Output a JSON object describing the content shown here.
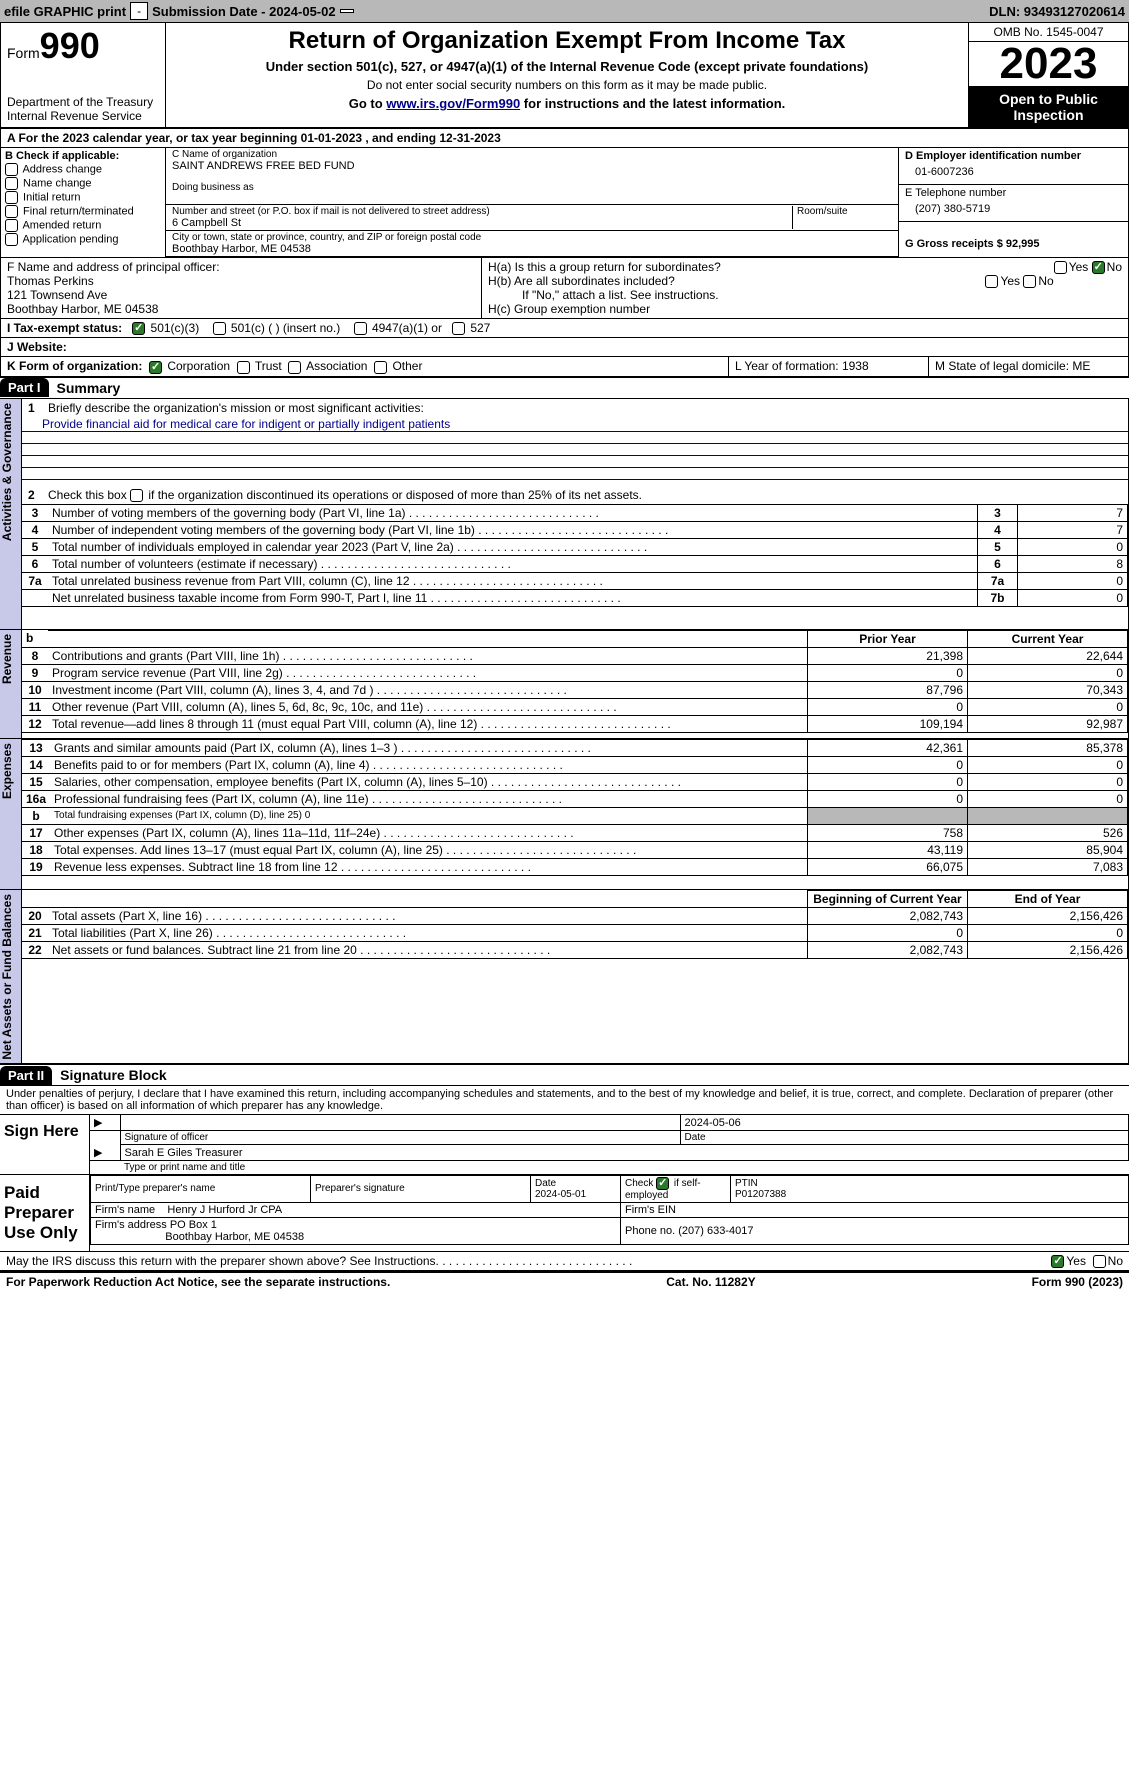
{
  "topbar": {
    "efile": "efile GRAPHIC print",
    "submission": "Submission Date - 2024-05-02",
    "dln": "DLN: 93493127020614"
  },
  "header": {
    "form_label": "Form",
    "form_no": "990",
    "dept": "Department of the Treasury\nInternal Revenue Service",
    "title": "Return of Organization Exempt From Income Tax",
    "sub": "Under section 501(c), 527, or 4947(a)(1) of the Internal Revenue Code (except private foundations)",
    "nossn": "Do not enter social security numbers on this form as it may be made public.",
    "goto": "Go to ",
    "link": "www.irs.gov/Form990",
    "goto2": " for instructions and the latest information.",
    "omb": "OMB No. 1545-0047",
    "year": "2023",
    "open": "Open to Public Inspection"
  },
  "lineA": "A For the 2023 calendar year, or tax year beginning 01-01-2023   , and ending 12-31-2023",
  "B": {
    "title": "B Check if applicable:",
    "items": [
      "Address change",
      "Name change",
      "Initial return",
      "Final return/terminated",
      "Amended return",
      "Application pending"
    ]
  },
  "C": {
    "name_lbl": "C Name of organization",
    "name": "SAINT ANDREWS FREE BED FUND",
    "dba_lbl": "Doing business as",
    "addr_lbl": "Number and street (or P.O. box if mail is not delivered to street address)",
    "addr": "6 Campbell St",
    "room_lbl": "Room/suite",
    "city_lbl": "City or town, state or province, country, and ZIP or foreign postal code",
    "city": "Boothbay Harbor, ME  04538"
  },
  "D": {
    "lbl": "D Employer identification number",
    "val": "01-6007236"
  },
  "E": {
    "lbl": "E Telephone number",
    "val": "(207) 380-5719"
  },
  "G": {
    "lbl": "G Gross receipts $ 92,995"
  },
  "F": {
    "lbl": "F  Name and address of principal officer:",
    "name": "Thomas Perkins",
    "addr1": "121 Townsend Ave",
    "addr2": "Boothbay Harbor, ME  04538"
  },
  "H": {
    "a": "H(a)  Is this a group return for subordinates?",
    "b": "H(b)  Are all subordinates included?",
    "bnote": "If \"No,\" attach a list. See instructions.",
    "c": "H(c)  Group exemption number",
    "yes": "Yes",
    "no": "No"
  },
  "I": {
    "lbl": "I  Tax-exempt status:",
    "o1": "501(c)(3)",
    "o2": "501(c) (  ) (insert no.)",
    "o3": "4947(a)(1) or",
    "o4": "527"
  },
  "J": {
    "lbl": "J  Website:"
  },
  "K": {
    "lbl": "K Form of organization:",
    "o1": "Corporation",
    "o2": "Trust",
    "o3": "Association",
    "o4": "Other"
  },
  "L": "L Year of formation: 1938",
  "M": "M State of legal domicile: ME",
  "part1": {
    "hdr": "Part I",
    "title": "Summary",
    "l1": "Briefly describe the organization's mission or most significant activities:",
    "mission": "Provide financial aid for medical care for indigent or partially indigent patients",
    "l2": "Check this box       if the organization discontinued its operations or disposed of more than 25% of its net assets.",
    "rows_gov": [
      {
        "n": "3",
        "d": "Number of voting members of the governing body (Part VI, line 1a)",
        "box": "3",
        "v": "7"
      },
      {
        "n": "4",
        "d": "Number of independent voting members of the governing body (Part VI, line 1b)",
        "box": "4",
        "v": "7"
      },
      {
        "n": "5",
        "d": "Total number of individuals employed in calendar year 2023 (Part V, line 2a)",
        "box": "5",
        "v": "0"
      },
      {
        "n": "6",
        "d": "Total number of volunteers (estimate if necessary)",
        "box": "6",
        "v": "8"
      },
      {
        "n": "7a",
        "d": "Total unrelated business revenue from Part VIII, column (C), line 12",
        "box": "7a",
        "v": "0"
      },
      {
        "n": "",
        "d": "Net unrelated business taxable income from Form 990-T, Part I, line 11",
        "box": "7b",
        "v": "0"
      }
    ],
    "prior": "Prior Year",
    "current": "Current Year",
    "rows_rev": [
      {
        "n": "8",
        "d": "Contributions and grants (Part VIII, line 1h)",
        "p": "21,398",
        "c": "22,644"
      },
      {
        "n": "9",
        "d": "Program service revenue (Part VIII, line 2g)",
        "p": "0",
        "c": "0"
      },
      {
        "n": "10",
        "d": "Investment income (Part VIII, column (A), lines 3, 4, and 7d )",
        "p": "87,796",
        "c": "70,343"
      },
      {
        "n": "11",
        "d": "Other revenue (Part VIII, column (A), lines 5, 6d, 8c, 9c, 10c, and 11e)",
        "p": "0",
        "c": "0"
      },
      {
        "n": "12",
        "d": "Total revenue—add lines 8 through 11 (must equal Part VIII, column (A), line 12)",
        "p": "109,194",
        "c": "92,987"
      }
    ],
    "rows_exp": [
      {
        "n": "13",
        "d": "Grants and similar amounts paid (Part IX, column (A), lines 1–3 )",
        "p": "42,361",
        "c": "85,378"
      },
      {
        "n": "14",
        "d": "Benefits paid to or for members (Part IX, column (A), line 4)",
        "p": "0",
        "c": "0"
      },
      {
        "n": "15",
        "d": "Salaries, other compensation, employee benefits (Part IX, column (A), lines 5–10)",
        "p": "0",
        "c": "0"
      },
      {
        "n": "16a",
        "d": "Professional fundraising fees (Part IX, column (A), line 11e)",
        "p": "0",
        "c": "0"
      },
      {
        "n": "b",
        "d": "Total fundraising expenses (Part IX, column (D), line 25) 0",
        "p": "",
        "c": "",
        "shade": true,
        "small": true
      },
      {
        "n": "17",
        "d": "Other expenses (Part IX, column (A), lines 11a–11d, 11f–24e)",
        "p": "758",
        "c": "526"
      },
      {
        "n": "18",
        "d": "Total expenses. Add lines 13–17 (must equal Part IX, column (A), line 25)",
        "p": "43,119",
        "c": "85,904"
      },
      {
        "n": "19",
        "d": "Revenue less expenses. Subtract line 18 from line 12",
        "p": "66,075",
        "c": "7,083"
      }
    ],
    "begin": "Beginning of Current Year",
    "end": "End of Year",
    "rows_net": [
      {
        "n": "20",
        "d": "Total assets (Part X, line 16)",
        "p": "2,082,743",
        "c": "2,156,426"
      },
      {
        "n": "21",
        "d": "Total liabilities (Part X, line 26)",
        "p": "0",
        "c": "0"
      },
      {
        "n": "22",
        "d": "Net assets or fund balances. Subtract line 21 from line 20",
        "p": "2,082,743",
        "c": "2,156,426"
      }
    ],
    "vtabs": {
      "gov": "Activities & Governance",
      "rev": "Revenue",
      "exp": "Expenses",
      "net": "Net Assets or Fund Balances"
    }
  },
  "part2": {
    "hdr": "Part II",
    "title": "Signature Block",
    "decl": "Under penalties of perjury, I declare that I have examined this return, including accompanying schedules and statements, and to the best of my knowledge and belief, it is true, correct, and complete. Declaration of preparer (other than officer) is based on all information of which preparer has any knowledge.",
    "sign_here": "Sign Here",
    "sig_officer": "Signature of officer",
    "sig_date": "2024-05-06",
    "officer_name": "Sarah E Giles Treasurer",
    "type_name": "Type or print name and title",
    "paid": "Paid Preparer Use Only",
    "prep_name_lbl": "Print/Type preparer's name",
    "prep_sig_lbl": "Preparer's signature",
    "date_lbl": "Date",
    "date": "2024-05-01",
    "check_self": "Check         if self-employed",
    "ptin_lbl": "PTIN",
    "ptin": "P01207388",
    "firm_name_lbl": "Firm's name",
    "firm_name": "Henry J Hurford Jr CPA",
    "firm_ein_lbl": "Firm's EIN",
    "firm_addr_lbl": "Firm's address",
    "firm_addr1": "PO Box 1",
    "firm_addr2": "Boothbay Harbor, ME  04538",
    "phone_lbl": "Phone no.",
    "phone": "(207) 633-4017",
    "discuss": "May the IRS discuss this return with the preparer shown above? See Instructions.",
    "yes": "Yes",
    "no": "No"
  },
  "footer": {
    "pra": "For Paperwork Reduction Act Notice, see the separate instructions.",
    "cat": "Cat. No. 11282Y",
    "form": "Form 990 (2023)"
  }
}
